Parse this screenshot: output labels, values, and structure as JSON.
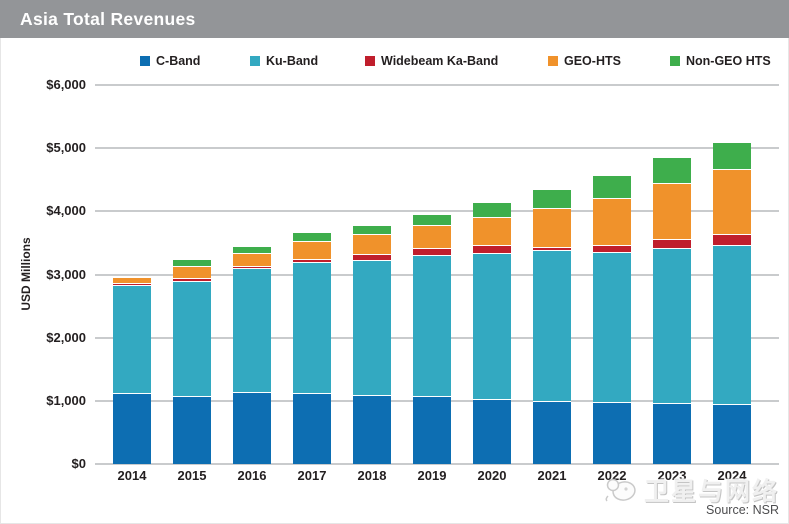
{
  "header": {
    "title": "Asia Total Revenues"
  },
  "watermark": {
    "text": "卫星与网络",
    "logo_icon": "satellite-cartoon-icon"
  },
  "chart_data": {
    "type": "bar",
    "stacked": true,
    "title": "Asia Total Revenues",
    "ylabel": "USD Millions",
    "source": "Source: NSR",
    "legend_position": "top",
    "grid": true,
    "ylim": [
      0,
      6000
    ],
    "ytick_step": 1000,
    "ytick_labels": [
      "$0",
      "$1,000",
      "$2,000",
      "$3,000",
      "$4,000",
      "$5,000",
      "$6,000"
    ],
    "categories": [
      "2014",
      "2015",
      "2016",
      "2017",
      "2018",
      "2019",
      "2020",
      "2021",
      "2022",
      "2023",
      "2024"
    ],
    "series": [
      {
        "name": "C-Band",
        "color": "#0d6eb2",
        "values": [
          1110,
          1060,
          1120,
          1115,
          1070,
          1055,
          1015,
          975,
          965,
          950,
          935
        ]
      },
      {
        "name": "Ku-Band",
        "color": "#33a9c1",
        "values": [
          1710,
          1820,
          1960,
          2075,
          2140,
          2235,
          2305,
          2390,
          2380,
          2455,
          2515
        ]
      },
      {
        "name": "Widebeam Ka-Band",
        "color": "#c01e2c",
        "values": [
          25,
          50,
          40,
          45,
          95,
          110,
          130,
          60,
          100,
          145,
          170
        ]
      },
      {
        "name": "GEO-HTS",
        "color": "#f0922b",
        "values": [
          105,
          195,
          200,
          285,
          320,
          370,
          440,
          615,
          750,
          890,
          1040
        ]
      },
      {
        "name": "Non-GEO HTS",
        "color": "#3eae4c",
        "values": [
          0,
          100,
          120,
          140,
          145,
          170,
          240,
          295,
          370,
          400,
          420
        ]
      }
    ],
    "totals": [
      2950,
      3225,
      3440,
      3660,
      3770,
      3940,
      4130,
      4335,
      4565,
      4840,
      5080
    ],
    "colors": {
      "header_bg": "#939598",
      "gridline": "#c9cbcd",
      "axis_text": "#231f20"
    }
  }
}
